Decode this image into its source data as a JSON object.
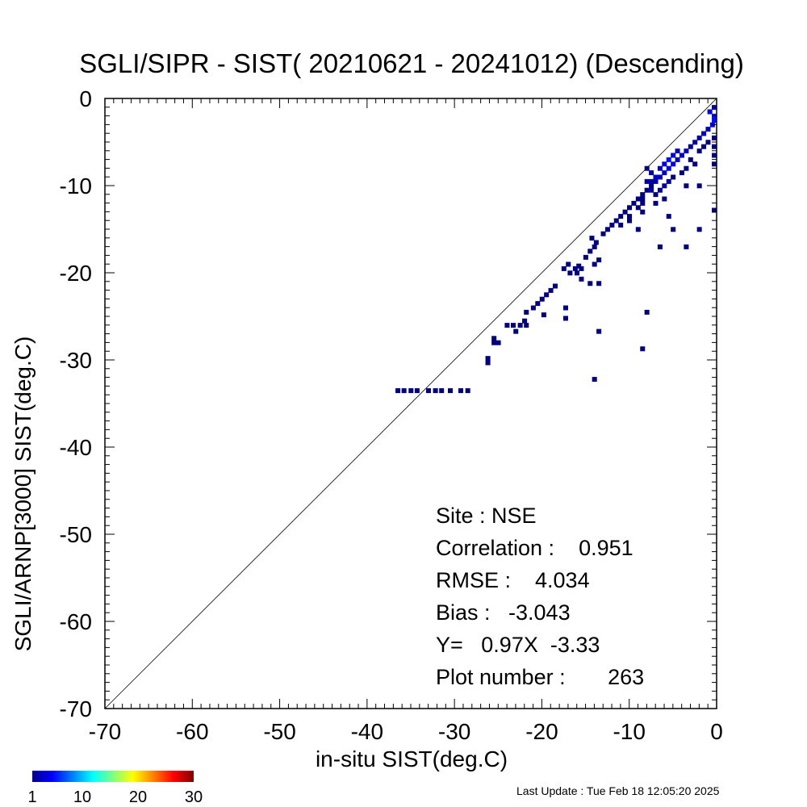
{
  "chart_data": {
    "type": "heatmap",
    "title": "SGLI/SIPR - SIST( 20210621 - 20241012) (Descending)",
    "xlabel": "in-situ SIST(deg.C)",
    "ylabel": "SGLI/ARNP[3000]  SIST(deg.C)",
    "xlim": [
      -70,
      0
    ],
    "ylim": [
      -70,
      0
    ],
    "xticks": [
      -70,
      -60,
      -50,
      -40,
      -30,
      -20,
      -10,
      0
    ],
    "yticks": [
      0,
      -10,
      -20,
      -30,
      -40,
      -50,
      -60,
      -70
    ],
    "grid": false,
    "reference_line": "y = x",
    "colorbar": {
      "min": 1,
      "max": 30,
      "ticks": [
        "1",
        "10",
        "20",
        "30"
      ],
      "colormap": "jet"
    },
    "cells": [
      [
        -36.5,
        -33.5,
        1
      ],
      [
        -35.8,
        -33.5,
        1
      ],
      [
        -35.0,
        -33.5,
        1
      ],
      [
        -34.3,
        -33.5,
        1
      ],
      [
        -33.0,
        -33.5,
        1
      ],
      [
        -32.2,
        -33.5,
        1
      ],
      [
        -31.5,
        -33.5,
        1
      ],
      [
        -30.5,
        -33.5,
        1
      ],
      [
        -28.5,
        -33.5,
        1
      ],
      [
        -29.3,
        -33.5,
        1
      ],
      [
        -26.2,
        -29.8,
        1
      ],
      [
        -26.2,
        -30.3,
        1
      ],
      [
        -25.5,
        -27.5,
        1
      ],
      [
        -25.0,
        -28.0,
        1
      ],
      [
        -25.5,
        -28.0,
        1
      ],
      [
        -24.0,
        -26.0,
        1
      ],
      [
        -23.3,
        -26.0,
        1
      ],
      [
        -22.5,
        -26.0,
        1
      ],
      [
        -21.8,
        -26.0,
        1
      ],
      [
        -23.0,
        -26.7,
        1
      ],
      [
        -22.0,
        -25.5,
        1
      ],
      [
        -21.8,
        -24.5,
        1
      ],
      [
        -21.0,
        -24.0,
        1
      ],
      [
        -20.5,
        -23.5,
        1
      ],
      [
        -20.0,
        -23.0,
        1
      ],
      [
        -19.5,
        -22.5,
        1
      ],
      [
        -19.0,
        -22.0,
        1
      ],
      [
        -18.5,
        -21.5,
        1
      ],
      [
        -19.8,
        -24.8,
        1
      ],
      [
        -17.3,
        -24.0,
        1
      ],
      [
        -17.3,
        -25.2,
        1
      ],
      [
        -17.5,
        -19.5,
        1
      ],
      [
        -16.8,
        -20.0,
        1
      ],
      [
        -16.2,
        -19.5,
        1
      ],
      [
        -15.5,
        -19.5,
        1
      ],
      [
        -17.0,
        -19.0,
        1
      ],
      [
        -16.0,
        -20.0,
        1
      ],
      [
        -15.5,
        -20.7,
        1
      ],
      [
        -15.0,
        -18.2,
        1
      ],
      [
        -14.5,
        -17.5,
        1
      ],
      [
        -14.0,
        -17.0,
        1
      ],
      [
        -13.8,
        -16.5,
        1
      ],
      [
        -14.3,
        -16.0,
        1
      ],
      [
        -13.5,
        -18.5,
        1
      ],
      [
        -14.5,
        -21.2,
        1
      ],
      [
        -13.5,
        -21.2,
        1
      ],
      [
        -14.0,
        -19.0,
        1
      ],
      [
        -13.0,
        -15.5,
        1
      ],
      [
        -12.5,
        -15.0,
        1
      ],
      [
        -12.0,
        -14.5,
        1
      ],
      [
        -11.5,
        -14.0,
        1
      ],
      [
        -11.0,
        -13.5,
        1
      ],
      [
        -10.5,
        -13.0,
        1
      ],
      [
        -10.0,
        -12.5,
        1
      ],
      [
        -9.5,
        -12.0,
        1
      ],
      [
        -9.0,
        -11.5,
        1
      ],
      [
        -8.5,
        -11.0,
        1
      ],
      [
        -8.0,
        -10.5,
        1
      ],
      [
        -7.5,
        -10.0,
        1
      ],
      [
        -7.0,
        -9.5,
        2
      ],
      [
        -6.5,
        -9.0,
        3
      ],
      [
        -6.0,
        -8.5,
        3
      ],
      [
        -5.5,
        -8.0,
        4
      ],
      [
        -5.0,
        -7.5,
        4
      ],
      [
        -4.5,
        -7.0,
        3
      ],
      [
        -4.0,
        -6.5,
        3
      ],
      [
        -3.5,
        -6.0,
        3
      ],
      [
        -3.0,
        -5.5,
        2
      ],
      [
        -2.5,
        -5.0,
        2
      ],
      [
        -2.0,
        -4.5,
        2
      ],
      [
        -1.5,
        -4.0,
        3
      ],
      [
        -1.0,
        -3.5,
        3
      ],
      [
        -0.5,
        -3.0,
        4
      ],
      [
        -0.3,
        -2.5,
        5
      ],
      [
        -0.3,
        -2.0,
        5
      ],
      [
        -0.8,
        -1.5,
        4
      ],
      [
        -0.3,
        -1.0,
        3
      ],
      [
        -8.0,
        -8.0,
        2
      ],
      [
        -7.5,
        -8.5,
        2
      ],
      [
        -7.0,
        -9.0,
        3
      ],
      [
        -6.5,
        -8.0,
        3
      ],
      [
        -6.0,
        -7.5,
        4
      ],
      [
        -5.5,
        -7.0,
        5
      ],
      [
        -5.0,
        -6.5,
        4
      ],
      [
        -4.5,
        -6.0,
        3
      ],
      [
        -7.5,
        -10.5,
        2
      ],
      [
        -7.0,
        -11.0,
        1
      ],
      [
        -6.0,
        -10.0,
        2
      ],
      [
        -5.5,
        -9.5,
        2
      ],
      [
        -5.0,
        -9.0,
        1
      ],
      [
        -4.0,
        -8.5,
        1
      ],
      [
        -3.5,
        -8.0,
        1
      ],
      [
        -2.5,
        -7.5,
        1
      ],
      [
        -8.5,
        -12.0,
        1
      ],
      [
        -9.0,
        -12.5,
        1
      ],
      [
        -10.0,
        -13.5,
        1
      ],
      [
        -11.0,
        -14.5,
        1
      ],
      [
        -8.0,
        -9.5,
        2
      ],
      [
        -7.5,
        -9.5,
        2
      ],
      [
        -6.5,
        -10.5,
        2
      ],
      [
        -6.0,
        -11.5,
        1
      ],
      [
        -3.0,
        -7.0,
        1
      ],
      [
        -2.0,
        -6.0,
        1
      ],
      [
        -1.5,
        -5.5,
        1
      ],
      [
        -1.0,
        -5.0,
        1
      ],
      [
        -0.3,
        -4.5,
        1
      ],
      [
        -0.3,
        -5.5,
        1
      ],
      [
        -0.3,
        -6.5,
        1
      ],
      [
        -0.3,
        -7.5,
        1
      ],
      [
        -3.5,
        -10.0,
        1
      ],
      [
        -2.0,
        -10.0,
        1
      ],
      [
        -8.5,
        -13.0,
        1
      ],
      [
        -10.0,
        -14.0,
        1
      ],
      [
        -9.0,
        -15.0,
        1
      ],
      [
        -8.5,
        -11.5,
        1
      ],
      [
        -7.0,
        -12.0,
        1
      ],
      [
        -5.5,
        -13.5,
        1
      ],
      [
        -5.0,
        -15.0,
        1
      ],
      [
        -3.5,
        -17.0,
        1
      ],
      [
        -6.5,
        -17.0,
        1
      ],
      [
        -2.0,
        -15.0,
        1
      ],
      [
        -0.3,
        -12.8,
        1
      ],
      [
        -8.0,
        -24.5,
        1
      ],
      [
        -13.5,
        -26.7,
        1
      ],
      [
        -8.5,
        -28.7,
        1
      ],
      [
        -14.0,
        -32.2,
        1
      ],
      [
        -15.8,
        -19.2,
        1
      ]
    ],
    "stats": {
      "site": "Site : NSE",
      "correlation": "Correlation :    0.951",
      "rmse": "RMSE :    4.034",
      "bias": "Bias :   -3.043",
      "fit": "Y=   0.97X  -3.33",
      "plot_number": "Plot number :       263"
    },
    "footer": "Last Update : Tue Feb 18 12:05:20 2025"
  }
}
